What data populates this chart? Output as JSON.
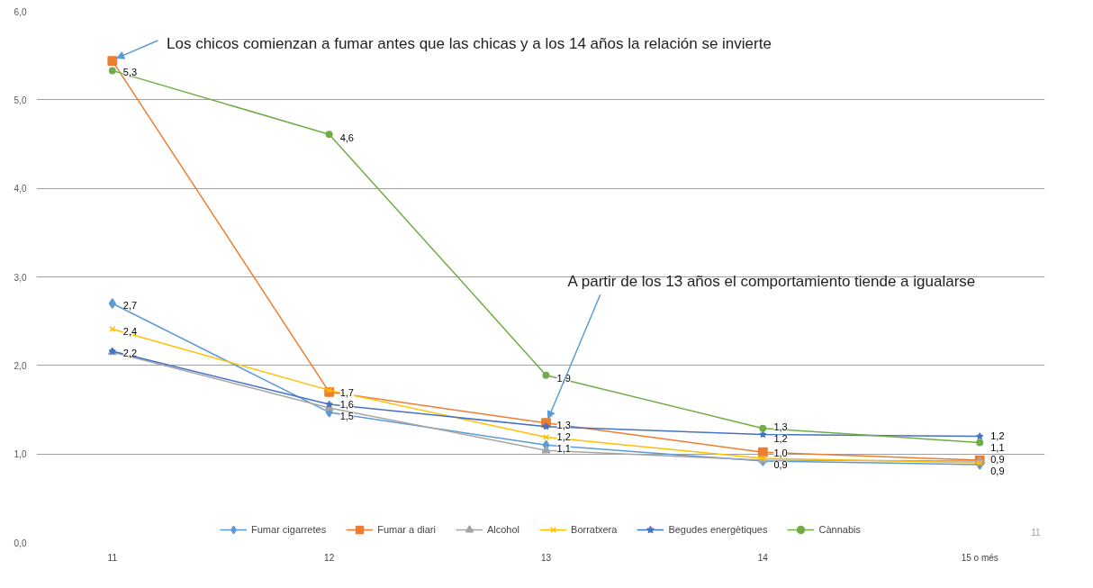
{
  "chart_data": {
    "type": "line",
    "categories": [
      "11",
      "12",
      "13",
      "14",
      "15 o més"
    ],
    "ylim": [
      0,
      6
    ],
    "yticks": [
      {
        "value": 0,
        "label": "0,0"
      },
      {
        "value": 1,
        "label": "1,0"
      },
      {
        "value": 2,
        "label": "2,0"
      },
      {
        "value": 3,
        "label": "3,0"
      },
      {
        "value": 4,
        "label": "4,0"
      },
      {
        "value": 5,
        "label": "5,0"
      },
      {
        "value": 6,
        "label": "6,0"
      }
    ],
    "grid": "y",
    "legend": "bottom",
    "line_style": "solid",
    "series": [
      {
        "name": "Fumar cigarretes",
        "color": "#5b9bd5",
        "marker": "diamond",
        "values": [
          2.7,
          1.47,
          1.1,
          0.92,
          0.88
        ],
        "value_labels": [
          "2,7",
          "1,5",
          "1,1",
          "0,9",
          "0,9"
        ]
      },
      {
        "name": "Fumar a diari",
        "color": "#ed7d31",
        "marker": "square",
        "values": [
          5.44,
          1.7,
          1.35,
          1.02,
          0.93
        ],
        "value_labels": [
          null,
          "1,7",
          "1,3",
          "1,0",
          null
        ]
      },
      {
        "name": "Alcohol",
        "color": "#a5a5a5",
        "marker": "triangle",
        "values": [
          2.15,
          1.52,
          1.04,
          0.93,
          0.92
        ],
        "value_labels": [
          null,
          null,
          null,
          null,
          null
        ]
      },
      {
        "name": "Borratxera",
        "color": "#ffc000",
        "marker": "cross",
        "values": [
          2.41,
          1.72,
          1.19,
          0.95,
          0.9
        ],
        "value_labels": [
          "2,4",
          null,
          "1,2",
          null,
          "0,9"
        ]
      },
      {
        "name": "Begudes energètiques",
        "color": "#4472c4",
        "marker": "star",
        "values": [
          2.16,
          1.56,
          1.31,
          1.22,
          1.2
        ],
        "value_labels": [
          "2,2",
          "1,6",
          null,
          "1,2",
          "1,2"
        ]
      },
      {
        "name": "Cànnabis",
        "color": "#70ad47",
        "marker": "circle",
        "values": [
          5.33,
          4.61,
          1.89,
          1.29,
          1.13
        ],
        "value_labels": [
          "5,3",
          "4,6",
          "1,9",
          "1,3",
          "1,1"
        ]
      }
    ],
    "annotations": [
      {
        "text": "Los chicos comienzan a fumar antes que las chicas y a los 14 años la relación se invierte",
        "x": "11",
        "y": 5.44
      },
      {
        "text": "A partir de los 13 años el comportamiento tiende a igualarse",
        "x": "13",
        "y": 1.35
      },
      "11"
    ]
  }
}
